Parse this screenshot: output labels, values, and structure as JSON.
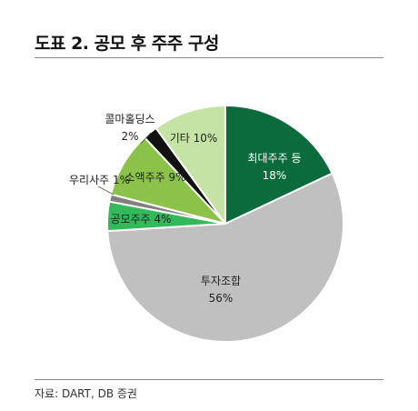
{
  "title": "도표 2. 공모 후 주주 구성",
  "source": "자료: DART, DB 증권",
  "chart_data": {
    "type": "pie",
    "slices": [
      {
        "label": "최대주주 등",
        "value": 18,
        "value_text": "18%",
        "color": "#0b6b3a",
        "text_color": "#ffffff"
      },
      {
        "label": "투자조합",
        "value": 56,
        "value_text": "56%",
        "color": "#c0c0c0",
        "text_color": "#222222"
      },
      {
        "label": "공모주주",
        "value": 4,
        "value_text": "4%",
        "color": "#33b85a",
        "text_color": "#222222"
      },
      {
        "label": "우리사주",
        "value": 1,
        "value_text": "1%",
        "color": "#808080",
        "text_color": "#222222"
      },
      {
        "label": "소액주주",
        "value": 9,
        "value_text": "9%",
        "color": "#8bc34a",
        "text_color": "#222222"
      },
      {
        "label": "콜마홀딩스",
        "value": 2,
        "value_text": "2%",
        "color": "#111111",
        "text_color": "#222222"
      },
      {
        "label": "기타",
        "value": 10,
        "value_text": "10%",
        "color": "#c6e3a6",
        "text_color": "#222222"
      }
    ],
    "start_angle_deg": 0,
    "direction": "clockwise"
  }
}
